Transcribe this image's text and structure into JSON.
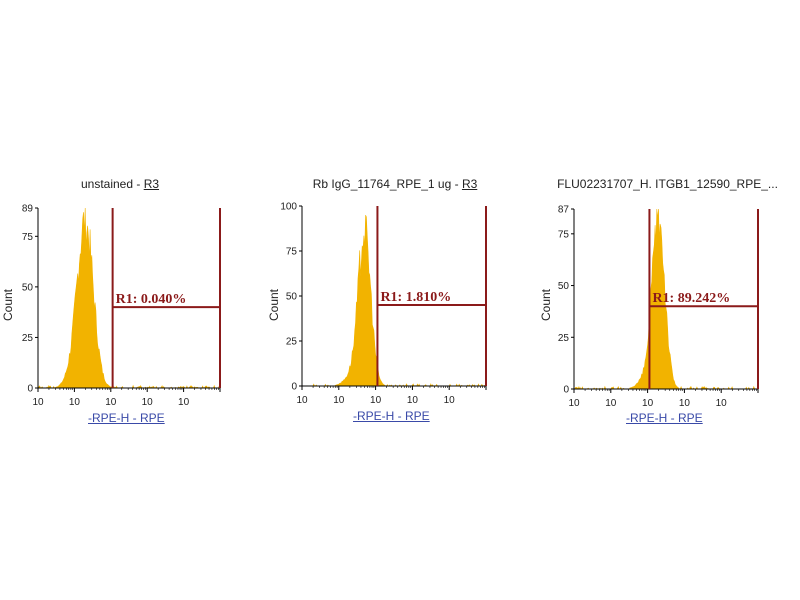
{
  "colors": {
    "histogram": "#f2b300",
    "gate": "#8b1a1a",
    "axis": "#000000",
    "xlabel": "#3a4aa8"
  },
  "chart_data": [
    {
      "type": "area",
      "title": "unstained - ",
      "title_gate": "R3",
      "xlabel": "-RPE-H - RPE",
      "ylabel": "Count",
      "xscale": "log",
      "x_tick_labels": [
        "10",
        "10",
        "10",
        "10",
        "10"
      ],
      "y_ticks": [
        0,
        25,
        50,
        75,
        89
      ],
      "ylim": [
        0,
        89
      ],
      "xlim_decades": [
        0,
        5
      ],
      "region": {
        "name": "R1",
        "label": "R1: 0.040%",
        "x_from_decade": 2.05,
        "x_to_decade": 5.0,
        "y_level": 40
      },
      "peak": {
        "center_decade": 1.3,
        "sigma": 0.22,
        "max": 84
      }
    },
    {
      "type": "area",
      "title": "Rb IgG_11764_RPE_1 ug - ",
      "title_gate": "R3",
      "xlabel": "-RPE-H - RPE",
      "ylabel": "Count",
      "xscale": "log",
      "x_tick_labels": [
        "10",
        "10",
        "10",
        "10",
        "10"
      ],
      "y_ticks": [
        0,
        25,
        50,
        75,
        100
      ],
      "ylim": [
        0,
        100
      ],
      "xlim_decades": [
        0,
        5
      ],
      "region": {
        "name": "R1",
        "label": "R1: 1.810%",
        "x_from_decade": 2.05,
        "x_to_decade": 5.0,
        "y_level": 45
      },
      "peak": {
        "center_decade": 1.7,
        "sigma": 0.17,
        "max": 88
      }
    },
    {
      "type": "area",
      "title": "FLU02231707_H. ITGB1_12590_RPE_...",
      "title_gate": "",
      "xlabel": "-RPE-H - RPE",
      "ylabel": "Count",
      "xscale": "log",
      "x_tick_labels": [
        "10",
        "10",
        "10",
        "10",
        "10"
      ],
      "y_ticks": [
        0,
        25,
        50,
        75,
        87
      ],
      "ylim": [
        0,
        87
      ],
      "xlim_decades": [
        0,
        5
      ],
      "region": {
        "name": "R1",
        "label": "R1: 89.242%",
        "x_from_decade": 2.05,
        "x_to_decade": 5.0,
        "y_level": 40
      },
      "peak": {
        "center_decade": 2.3,
        "sigma": 0.17,
        "max": 85
      }
    }
  ]
}
